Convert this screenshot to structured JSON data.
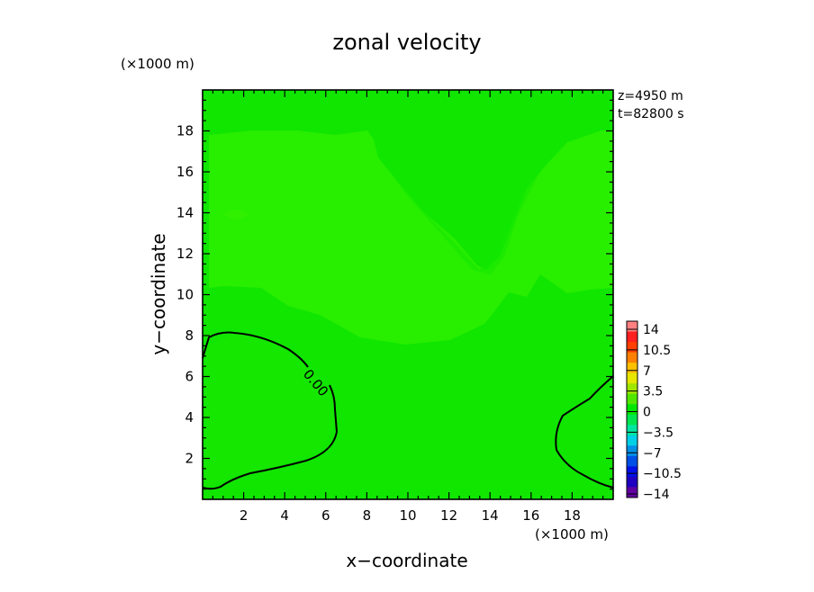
{
  "chart_data": {
    "type": "heatmap",
    "title": "zonal velocity",
    "xlabel": "x−coordinate",
    "ylabel": "y−coordinate",
    "x_unit": "(×1000 m)",
    "y_unit": "(×1000 m)",
    "xlim": [
      0,
      20
    ],
    "ylim": [
      0,
      20
    ],
    "x_ticks": [
      2,
      4,
      6,
      8,
      10,
      12,
      14,
      16,
      18
    ],
    "y_ticks": [
      2,
      4,
      6,
      8,
      10,
      12,
      14,
      16,
      18
    ],
    "info": [
      "z=4950  m",
      "t=82800  s"
    ],
    "contour_label": "0.00",
    "colorbar": {
      "labels": [
        "14",
        "10.5",
        "7",
        "3.5",
        "0",
        "−3.5",
        "−7",
        "−10.5",
        "−14"
      ],
      "colors": [
        "#ff8080",
        "#ff2020",
        "#ff4000",
        "#ff8000",
        "#ffc000",
        "#e6e600",
        "#a0e600",
        "#50e600",
        "#00e600",
        "#00e650",
        "#00e6a0",
        "#00d0e6",
        "#0090e6",
        "#0050e6",
        "#0010e6",
        "#2000c0",
        "#6000a0"
      ]
    },
    "regions": {
      "background": "#10e600",
      "upper_band": "#28ee00",
      "central_patch": "#14e800",
      "lower_patch": "#1ae800"
    }
  }
}
